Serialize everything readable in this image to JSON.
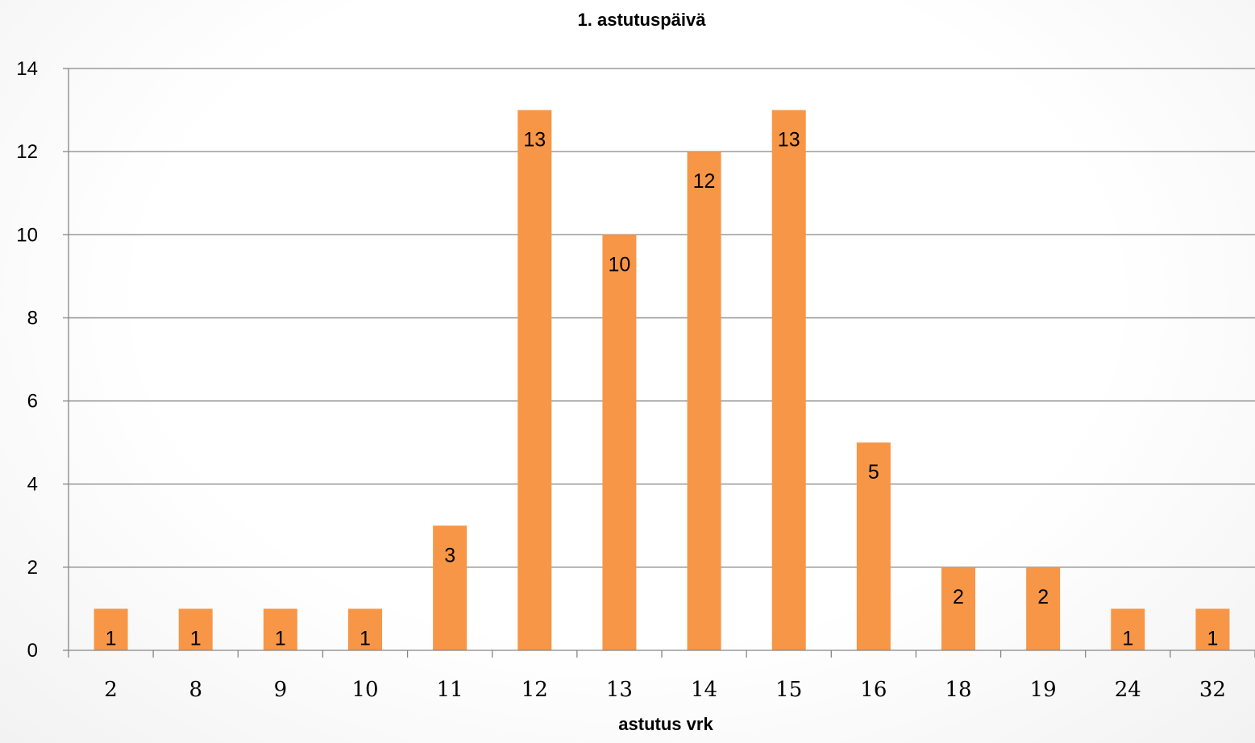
{
  "chart_data": {
    "type": "bar",
    "title": "1. astutuspäivä",
    "xlabel": "astutus vrk",
    "ylabel": "",
    "categories": [
      "2",
      "8",
      "9",
      "10",
      "11",
      "12",
      "13",
      "14",
      "15",
      "16",
      "18",
      "19",
      "24",
      "32"
    ],
    "values": [
      1,
      1,
      1,
      1,
      3,
      13,
      10,
      12,
      13,
      5,
      2,
      2,
      1,
      1
    ],
    "data_labels": [
      "1",
      "1",
      "1",
      "1",
      "3",
      "13",
      "10",
      "12",
      "13",
      "5",
      "2",
      "2",
      "1",
      "1"
    ],
    "ylim": [
      0,
      14
    ],
    "yticks": [
      "0",
      "2",
      "4",
      "6",
      "8",
      "10",
      "12",
      "14"
    ],
    "grid": true,
    "legend": "none",
    "colors": {
      "bar": "#f79646",
      "grid": "#868686",
      "axis": "#868686"
    }
  }
}
